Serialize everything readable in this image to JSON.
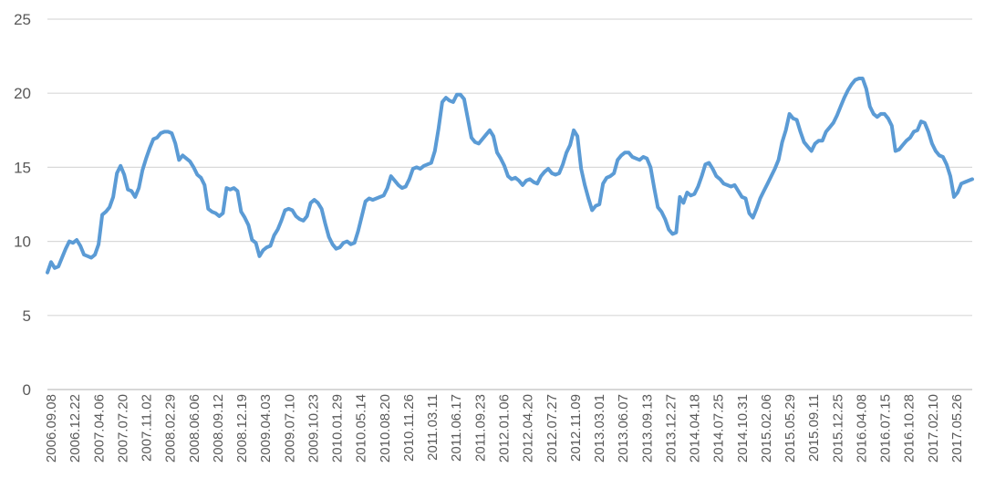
{
  "chart_data": {
    "type": "line",
    "title": "",
    "xlabel": "",
    "ylabel": "",
    "ylim": [
      0,
      25
    ],
    "yticks": [
      0,
      5,
      10,
      15,
      20,
      25
    ],
    "grid": true,
    "legend": "none",
    "line_color": "#5b9bd5",
    "x_tick_labels": [
      "2006.09.08",
      "2006.12.22",
      "2007.04.06",
      "2007.07.20",
      "2007.11.02",
      "2008.02.29",
      "2008.06.06",
      "2008.09.12",
      "2008.12.19",
      "2009.04.03",
      "2009.07.10",
      "2009.10.23",
      "2010.01.29",
      "2010.05.14",
      "2010.08.20",
      "2010.11.26",
      "2011.03.11",
      "2011.06.17",
      "2011.09.23",
      "2012.01.06",
      "2012.04.20",
      "2012.07.27",
      "2012.11.09",
      "2013.03.01",
      "2013.06.07",
      "2013.09.13",
      "2013.12.27",
      "2014.04.18",
      "2014.07.25",
      "2014.10.31",
      "2015.02.06",
      "2015.05.29",
      "2015.09.11",
      "2015.12.25",
      "2016.04.08",
      "2016.07.15",
      "2016.10.28",
      "2017.02.10",
      "2017.05.26"
    ],
    "series": [
      {
        "values": [
          7.9,
          8.6,
          8.2,
          8.3,
          8.9,
          9.5,
          10.0,
          9.9,
          10.1,
          9.7,
          9.1,
          9.0,
          8.9,
          9.1,
          9.8,
          11.8,
          12.0,
          12.3,
          13.0,
          14.6,
          15.1,
          14.5,
          13.5,
          13.4,
          13.0,
          13.6,
          14.8,
          15.6,
          16.3,
          16.9,
          17.0,
          17.3,
          17.4,
          17.4,
          17.3,
          16.6,
          15.5,
          15.8,
          15.6,
          15.4,
          15.0,
          14.5,
          14.3,
          13.8,
          12.2,
          12.0,
          11.9,
          11.7,
          11.9,
          13.6,
          13.5,
          13.6,
          13.4,
          12.0,
          11.6,
          11.1,
          10.1,
          9.9,
          9.0,
          9.4,
          9.6,
          9.7,
          10.4,
          10.8,
          11.4,
          12.1,
          12.2,
          12.1,
          11.7,
          11.5,
          11.4,
          11.7,
          12.6,
          12.8,
          12.6,
          12.2,
          11.2,
          10.3,
          9.8,
          9.5,
          9.6,
          9.9,
          10.0,
          9.8,
          9.9,
          10.7,
          11.7,
          12.7,
          12.9,
          12.8,
          12.9,
          13.0,
          13.1,
          13.6,
          14.4,
          14.1,
          13.8,
          13.6,
          13.7,
          14.2,
          14.9,
          15.0,
          14.9,
          15.1,
          15.2,
          15.3,
          16.1,
          17.6,
          19.4,
          19.7,
          19.5,
          19.4,
          19.9,
          19.9,
          19.6,
          18.3,
          17.0,
          16.7,
          16.6,
          16.9,
          17.2,
          17.5,
          17.1,
          16.0,
          15.6,
          15.1,
          14.4,
          14.2,
          14.3,
          14.1,
          13.8,
          14.1,
          14.2,
          14.0,
          13.9,
          14.4,
          14.7,
          14.9,
          14.6,
          14.5,
          14.6,
          15.2,
          16.0,
          16.5,
          17.5,
          17.1,
          14.9,
          13.8,
          12.9,
          12.1,
          12.4,
          12.5,
          13.9,
          14.3,
          14.4,
          14.6,
          15.5,
          15.8,
          16.0,
          16.0,
          15.7,
          15.6,
          15.5,
          15.7,
          15.6,
          15.0,
          13.6,
          12.3,
          12.0,
          11.5,
          10.8,
          10.5,
          10.6,
          13.0,
          12.6,
          13.3,
          13.1,
          13.2,
          13.7,
          14.4,
          15.2,
          15.3,
          14.9,
          14.4,
          14.2,
          13.9,
          13.8,
          13.7,
          13.8,
          13.4,
          13.0,
          12.9,
          11.9,
          11.6,
          12.2,
          12.9,
          13.4,
          13.9,
          14.4,
          14.9,
          15.5,
          16.7,
          17.5,
          18.6,
          18.3,
          18.2,
          17.4,
          16.7,
          16.4,
          16.1,
          16.6,
          16.8,
          16.8,
          17.4,
          17.7,
          18.0,
          18.5,
          19.1,
          19.7,
          20.2,
          20.6,
          20.9,
          21.0,
          21.0,
          20.3,
          19.1,
          18.6,
          18.4,
          18.6,
          18.6,
          18.3,
          17.8,
          16.1,
          16.2,
          16.5,
          16.8,
          17.0,
          17.4,
          17.5,
          18.1,
          18.0,
          17.4,
          16.6,
          16.1,
          15.8,
          15.7,
          15.2,
          14.4,
          13.0,
          13.3,
          13.9,
          14.0,
          14.1,
          14.2
        ]
      }
    ]
  }
}
